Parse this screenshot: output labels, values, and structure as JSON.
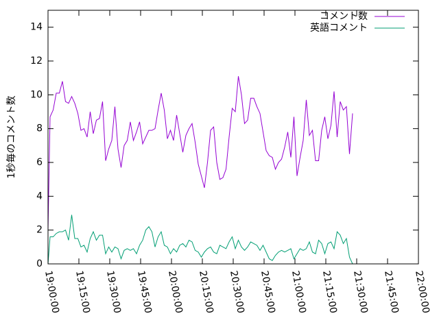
{
  "chart_data": {
    "type": "line",
    "ylabel": "1秒毎のコメント数",
    "xlim": [
      "19:00:00",
      "22:00:00"
    ],
    "ylim": [
      0,
      15
    ],
    "x_ticks": [
      "19:00:00",
      "19:15:00",
      "19:30:00",
      "19:45:00",
      "20:00:00",
      "20:15:00",
      "20:30:00",
      "20:45:00",
      "21:00:00",
      "21:15:00",
      "21:30:00",
      "21:45:00",
      "22:00:00"
    ],
    "y_ticks": [
      "0",
      "2",
      "4",
      "6",
      "8",
      "10",
      "12",
      "14"
    ],
    "grid": false,
    "legend_position": "top-right",
    "x_start": "18:58:00",
    "x_step_minutes": 1.5,
    "series": [
      {
        "name": "コメント数",
        "color": "#9400d3",
        "values": [
          2.0,
          2.0,
          8.7,
          9.1,
          10.1,
          10.1,
          10.8,
          9.6,
          9.5,
          9.9,
          9.5,
          8.9,
          7.9,
          8.0,
          7.5,
          9.0,
          7.7,
          8.5,
          8.6,
          9.6,
          6.1,
          6.8,
          7.3,
          9.3,
          6.8,
          5.7,
          7.0,
          7.3,
          8.4,
          7.3,
          7.8,
          8.4,
          7.1,
          7.5,
          7.9,
          7.9,
          8.0,
          9.1,
          10.1,
          9.1,
          7.4,
          7.9,
          7.3,
          8.8,
          7.7,
          6.6,
          7.6,
          8.0,
          8.3,
          7.2,
          5.9,
          5.2,
          4.5,
          6.0,
          7.9,
          8.1,
          6.0,
          5.0,
          5.1,
          5.6,
          7.5,
          9.2,
          9.0,
          11.1,
          10.0,
          8.3,
          8.5,
          9.8,
          9.8,
          9.3,
          8.9,
          7.8,
          6.7,
          6.4,
          6.3,
          5.6,
          6.0,
          6.2,
          6.9,
          7.8,
          6.3,
          8.7,
          5.2,
          6.3,
          7.3,
          9.7,
          7.6,
          7.9,
          6.1,
          6.1,
          7.9,
          8.7,
          7.4,
          8.2,
          10.2,
          7.5,
          9.6,
          9.1,
          9.3,
          6.5,
          8.9
        ]
      },
      {
        "name": "英語コメント",
        "color": "#009e73",
        "values": [
          0.0,
          0.0,
          1.6,
          1.6,
          1.8,
          1.9,
          1.9,
          2.0,
          1.4,
          2.9,
          1.5,
          1.5,
          1.0,
          1.1,
          0.7,
          1.5,
          1.9,
          1.4,
          1.7,
          1.7,
          0.6,
          1.0,
          0.7,
          1.0,
          0.9,
          0.3,
          0.8,
          0.9,
          0.8,
          0.9,
          0.6,
          1.1,
          1.4,
          2.0,
          2.2,
          1.9,
          1.0,
          1.6,
          1.9,
          1.1,
          1.0,
          0.6,
          0.9,
          0.7,
          1.1,
          1.2,
          1.0,
          1.4,
          1.3,
          0.8,
          0.7,
          0.4,
          0.7,
          0.9,
          1.0,
          0.7,
          0.6,
          1.1,
          1.0,
          0.9,
          1.3,
          1.6,
          0.9,
          1.4,
          1.0,
          0.8,
          1.0,
          1.3,
          1.2,
          1.1,
          0.8,
          1.1,
          0.7,
          0.3,
          0.2,
          0.5,
          0.7,
          0.8,
          0.7,
          0.8,
          0.9,
          0.3,
          0.6,
          0.9,
          0.8,
          0.9,
          1.3,
          0.7,
          0.6,
          1.4,
          1.2,
          0.6,
          1.2,
          1.3,
          0.9,
          1.9,
          1.7,
          1.2,
          1.5,
          0.4,
          0.0
        ]
      }
    ]
  }
}
